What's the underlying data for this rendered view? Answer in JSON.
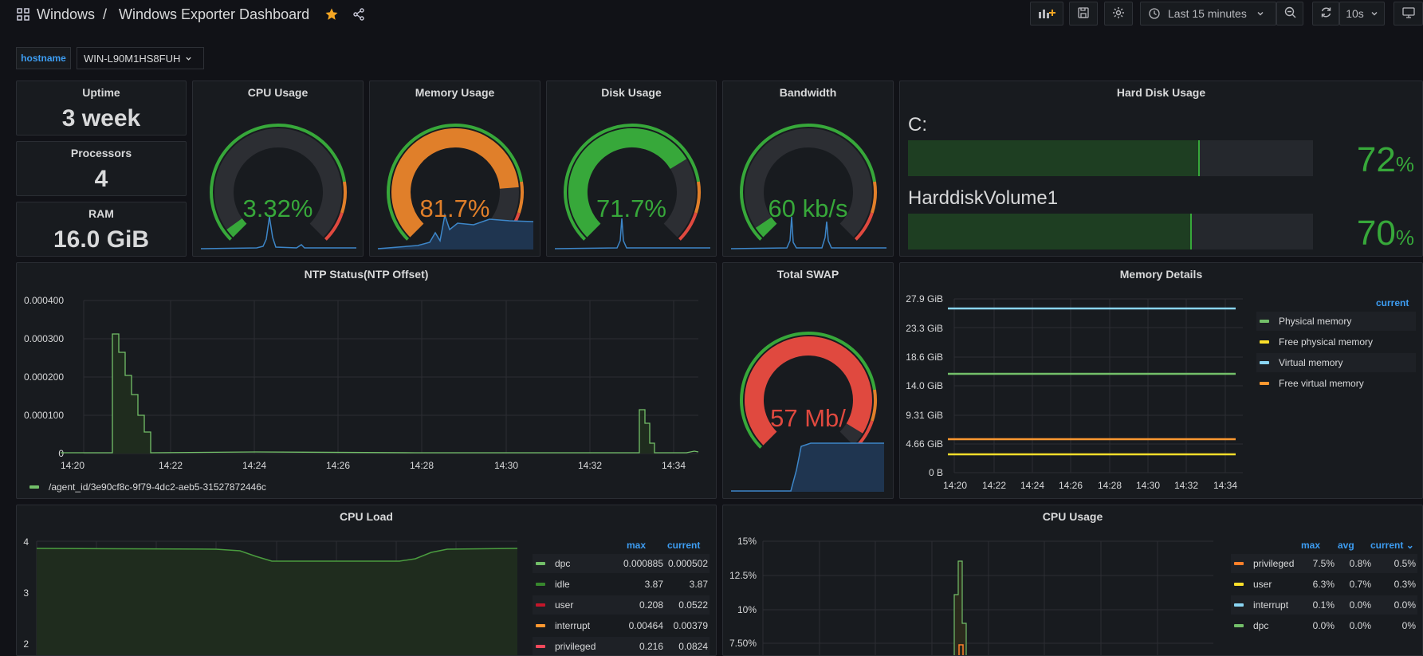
{
  "header": {
    "breadcrumb_root": "Windows",
    "breadcrumb_sep": "/",
    "dashboard_title": "Windows Exporter Dashboard",
    "time_range": "Last 15 minutes",
    "refresh_interval": "10s"
  },
  "variables": {
    "hostname_label": "hostname",
    "hostname_value": "WIN-L90M1HS8FUH"
  },
  "stats": {
    "uptime_title": "Uptime",
    "uptime_value": "3 week",
    "processors_title": "Processors",
    "processors_value": "4",
    "ram_title": "RAM",
    "ram_value": "16.0 GiB"
  },
  "gauges": {
    "cpu": {
      "title": "CPU Usage",
      "display": "3.32%",
      "value": 3.32,
      "max": 100,
      "color": "#37a83a"
    },
    "memory": {
      "title": "Memory Usage",
      "display": "81.7%",
      "value": 81.7,
      "max": 100,
      "color": "#e07f2a"
    },
    "disk": {
      "title": "Disk Usage",
      "display": "71.7%",
      "value": 71.7,
      "max": 100,
      "color": "#37a83a"
    },
    "bandwidth": {
      "title": "Bandwidth",
      "display": "60 kb/s",
      "value": 0.04,
      "max": 1,
      "color": "#37a83a"
    },
    "swap": {
      "title": "Total SWAP",
      "display": "57 Mb/",
      "value": 0.95,
      "max": 1,
      "color": "#e0493f"
    }
  },
  "hard_disk": {
    "title": "Hard Disk Usage",
    "disks": [
      {
        "name": "C:",
        "value_number": "72",
        "unit": "%",
        "percent": 72
      },
      {
        "name": "HarddiskVolume1",
        "value_number": "70",
        "unit": "%",
        "percent": 70
      }
    ]
  },
  "ntp": {
    "title": "NTP Status(NTP Offset)",
    "legend": "/agent_id/3e90cf8c-9f79-4dc2-aeb5-31527872446c"
  },
  "memory_details": {
    "title": "Memory Details",
    "legend_header": "current",
    "legend": [
      {
        "name": "Physical memory",
        "color": "#73bf69"
      },
      {
        "name": "Free physical memory",
        "color": "#fade2a"
      },
      {
        "name": "Virtual memory",
        "color": "#8ad5f3"
      },
      {
        "name": "Free virtual memory",
        "color": "#ff9830"
      }
    ]
  },
  "cpu_load": {
    "title": "CPU Load",
    "col_max": "max",
    "col_current": "current",
    "rows": [
      {
        "name": "dpc",
        "max": "0.000885",
        "current": "0.000502",
        "color": "#73bf69"
      },
      {
        "name": "idle",
        "max": "3.87",
        "current": "3.87",
        "color": "#37872d"
      },
      {
        "name": "user",
        "max": "0.208",
        "current": "0.0522",
        "color": "#c4162a"
      },
      {
        "name": "interrupt",
        "max": "0.00464",
        "current": "0.00379",
        "color": "#ff9830"
      },
      {
        "name": "privileged",
        "max": "0.216",
        "current": "0.0824",
        "color": "#f2495c"
      }
    ]
  },
  "cpu_usage": {
    "title": "CPU Usage",
    "col_max": "max",
    "col_avg": "avg",
    "col_current": "current",
    "rows": [
      {
        "name": "privileged",
        "max": "7.5%",
        "avg": "0.8%",
        "current": "0.5%",
        "color": "#ff7f2a"
      },
      {
        "name": "user",
        "max": "6.3%",
        "avg": "0.7%",
        "current": "0.3%",
        "color": "#fade2a"
      },
      {
        "name": "interrupt",
        "max": "0.1%",
        "avg": "0.0%",
        "current": "0.0%",
        "color": "#8ad5f3"
      },
      {
        "name": "dpc",
        "max": "0.0%",
        "avg": "0.0%",
        "current": "0%",
        "color": "#73bf69"
      }
    ]
  },
  "chart_data": [
    {
      "type": "line",
      "title": "NTP Status(NTP Offset)",
      "x_ticks": [
        "14:20",
        "14:22",
        "14:24",
        "14:26",
        "14:28",
        "14:30",
        "14:32",
        "14:34"
      ],
      "y_ticks": [
        "0",
        "0.000100",
        "0.000200",
        "0.000300",
        "0.000400"
      ],
      "ylim": [
        0,
        0.0004
      ],
      "series": [
        {
          "name": "/agent_id/3e90cf8c-9f79-4dc2-aeb5-31527872446c",
          "color": "#73bf69",
          "x": [
            "14:19:40",
            "14:20:30",
            "14:20:45",
            "14:20:55",
            "14:21:05",
            "14:21:15",
            "14:21:25",
            "14:21:35",
            "14:21:45",
            "14:22:00",
            "14:26:00",
            "14:30:00",
            "14:33:00",
            "14:33:10",
            "14:33:20",
            "14:33:30",
            "14:33:40",
            "14:34:30"
          ],
          "y": [
            5e-07,
            1e-06,
            0.000313,
            0.000265,
            0.000205,
            0.000155,
            0.0001,
            5.5e-05,
            2e-06,
            1e-06,
            2e-06,
            1e-06,
            1e-06,
            0.000115,
            8e-05,
            2.8e-05,
            1e-06,
            4e-06
          ]
        }
      ]
    },
    {
      "type": "line",
      "title": "Memory Details",
      "x_ticks": [
        "14:20",
        "14:22",
        "14:24",
        "14:26",
        "14:28",
        "14:30",
        "14:32",
        "14:34"
      ],
      "y_ticks": [
        "0 B",
        "4.66 GiB",
        "9.31 GiB",
        "14.0 GiB",
        "18.6 GiB",
        "23.3 GiB",
        "27.9 GiB"
      ],
      "ylim_gib": [
        0,
        27.9
      ],
      "series": [
        {
          "name": "Physical memory",
          "color": "#73bf69",
          "y_gib": 16.0
        },
        {
          "name": "Free physical memory",
          "color": "#fade2a",
          "y_gib": 2.9
        },
        {
          "name": "Virtual memory",
          "color": "#8ad5f3",
          "y_gib": 26.4
        },
        {
          "name": "Free virtual memory",
          "color": "#ff9830",
          "y_gib": 5.3
        }
      ]
    },
    {
      "type": "area",
      "title": "CPU Load",
      "y_ticks": [
        "2",
        "3",
        "4"
      ],
      "ylim": [
        1.9,
        4.2
      ],
      "series": [
        {
          "name": "idle",
          "color": "#37872d",
          "x": [
            0,
            0.2,
            0.4,
            0.43,
            0.46,
            0.5,
            0.6,
            0.7,
            0.75,
            0.78,
            0.82,
            0.86,
            1.0
          ],
          "y": [
            3.87,
            3.86,
            3.86,
            3.8,
            3.7,
            3.62,
            3.62,
            3.62,
            3.65,
            3.75,
            3.82,
            3.86,
            3.87
          ]
        }
      ]
    },
    {
      "type": "line",
      "title": "CPU Usage",
      "y_ticks": [
        "7.50%",
        "10%",
        "12.5%",
        "15%"
      ],
      "ylim": [
        7,
        15
      ],
      "series": [
        {
          "name": "privileged",
          "color": "#ff7f2a",
          "peak": 7.5
        },
        {
          "name": "user",
          "color": "#fade2a",
          "peak": 6.3
        }
      ]
    }
  ]
}
